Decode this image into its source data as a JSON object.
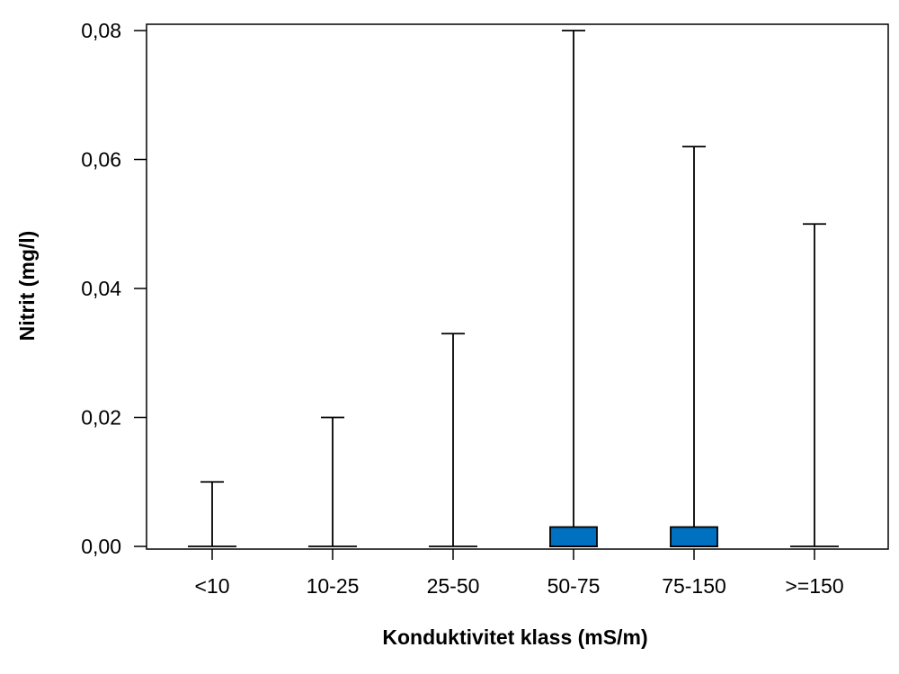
{
  "chart_data": {
    "type": "boxplot",
    "title": "",
    "xlabel": "Konduktivitet klass (mS/m)",
    "ylabel": "Nitrit (mg/l)",
    "ylim": [
      0,
      0.08
    ],
    "y_ticks": [
      "0,00",
      "0,02",
      "0,04",
      "0,06",
      "0,08"
    ],
    "y_tick_values": [
      0,
      0.02,
      0.04,
      0.06,
      0.08
    ],
    "grid": false,
    "box_color": "#0070c0",
    "categories": [
      "<10",
      "10-25",
      "25-50",
      "50-75",
      "75-150",
      ">=150"
    ],
    "boxes": [
      {
        "category": "<10",
        "min": 0,
        "q1": 0,
        "median": 0,
        "q3": 0,
        "max": 0.01
      },
      {
        "category": "10-25",
        "min": 0,
        "q1": 0,
        "median": 0,
        "q3": 0,
        "max": 0.02
      },
      {
        "category": "25-50",
        "min": 0,
        "q1": 0,
        "median": 0,
        "q3": 0,
        "max": 0.033
      },
      {
        "category": "50-75",
        "min": 0,
        "q1": 0,
        "median": 0,
        "q3": 0.003,
        "max": 0.08
      },
      {
        "category": "75-150",
        "min": 0,
        "q1": 0,
        "median": 0,
        "q3": 0.003,
        "max": 0.062
      },
      {
        "category": ">=150",
        "min": 0,
        "q1": 0,
        "median": 0,
        "q3": 0,
        "max": 0.05
      }
    ]
  }
}
